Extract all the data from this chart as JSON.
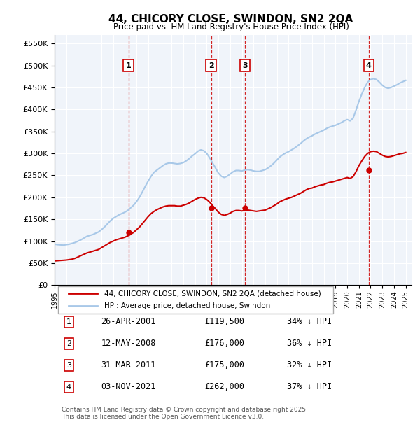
{
  "title": "44, CHICORY CLOSE, SWINDON, SN2 2QA",
  "subtitle": "Price paid vs. HM Land Registry's House Price Index (HPI)",
  "ylabel_ticks": [
    "£0",
    "£50K",
    "£100K",
    "£150K",
    "£200K",
    "£250K",
    "£300K",
    "£350K",
    "£400K",
    "£450K",
    "£500K",
    "£550K"
  ],
  "ytick_values": [
    0,
    50000,
    100000,
    150000,
    200000,
    250000,
    300000,
    350000,
    400000,
    450000,
    500000,
    550000
  ],
  "ylim": [
    0,
    570000
  ],
  "xlim_start": 1995.0,
  "xlim_end": 2025.5,
  "transactions": [
    {
      "id": 1,
      "date": "26-APR-2001",
      "price": 119500,
      "pct": "34%",
      "x": 2001.32
    },
    {
      "id": 2,
      "date": "12-MAY-2008",
      "price": 176000,
      "pct": "36%",
      "x": 2008.37
    },
    {
      "id": 3,
      "date": "31-MAR-2011",
      "price": 175000,
      "pct": "32%",
      "x": 2011.25
    },
    {
      "id": 4,
      "date": "03-NOV-2021",
      "price": 262000,
      "pct": "37%",
      "x": 2021.84
    }
  ],
  "hpi_line_color": "#a8c8e8",
  "price_line_color": "#cc0000",
  "vline_color": "#cc0000",
  "legend_label_red": "44, CHICORY CLOSE, SWINDON, SN2 2QA (detached house)",
  "legend_label_blue": "HPI: Average price, detached house, Swindon",
  "footer": "Contains HM Land Registry data © Crown copyright and database right 2025.\nThis data is licensed under the Open Government Licence v3.0.",
  "background_color": "#f0f4fa",
  "plot_bg_color": "#f0f4fa",
  "hpi_data_x": [
    1995.0,
    1995.25,
    1995.5,
    1995.75,
    1996.0,
    1996.25,
    1996.5,
    1996.75,
    1997.0,
    1997.25,
    1997.5,
    1997.75,
    1998.0,
    1998.25,
    1998.5,
    1998.75,
    1999.0,
    1999.25,
    1999.5,
    1999.75,
    2000.0,
    2000.25,
    2000.5,
    2000.75,
    2001.0,
    2001.25,
    2001.5,
    2001.75,
    2002.0,
    2002.25,
    2002.5,
    2002.75,
    2003.0,
    2003.25,
    2003.5,
    2003.75,
    2004.0,
    2004.25,
    2004.5,
    2004.75,
    2005.0,
    2005.25,
    2005.5,
    2005.75,
    2006.0,
    2006.25,
    2006.5,
    2006.75,
    2007.0,
    2007.25,
    2007.5,
    2007.75,
    2008.0,
    2008.25,
    2008.5,
    2008.75,
    2009.0,
    2009.25,
    2009.5,
    2009.75,
    2010.0,
    2010.25,
    2010.5,
    2010.75,
    2011.0,
    2011.25,
    2011.5,
    2011.75,
    2012.0,
    2012.25,
    2012.5,
    2012.75,
    2013.0,
    2013.25,
    2013.5,
    2013.75,
    2014.0,
    2014.25,
    2014.5,
    2014.75,
    2015.0,
    2015.25,
    2015.5,
    2015.75,
    2016.0,
    2016.25,
    2016.5,
    2016.75,
    2017.0,
    2017.25,
    2017.5,
    2017.75,
    2018.0,
    2018.25,
    2018.5,
    2018.75,
    2019.0,
    2019.25,
    2019.5,
    2019.75,
    2020.0,
    2020.25,
    2020.5,
    2020.75,
    2021.0,
    2021.25,
    2021.5,
    2021.75,
    2022.0,
    2022.25,
    2022.5,
    2022.75,
    2023.0,
    2023.25,
    2023.5,
    2023.75,
    2024.0,
    2024.25,
    2024.5,
    2024.75,
    2025.0
  ],
  "hpi_data_y": [
    93000,
    92000,
    91500,
    91000,
    92000,
    93000,
    95000,
    97000,
    100000,
    103000,
    107000,
    111000,
    113000,
    115000,
    118000,
    121000,
    126000,
    132000,
    139000,
    146000,
    152000,
    156000,
    160000,
    163000,
    166000,
    170000,
    176000,
    182000,
    190000,
    200000,
    212000,
    225000,
    237000,
    248000,
    257000,
    262000,
    267000,
    272000,
    276000,
    278000,
    278000,
    277000,
    276000,
    277000,
    279000,
    283000,
    288000,
    294000,
    299000,
    305000,
    308000,
    306000,
    300000,
    290000,
    278000,
    267000,
    255000,
    248000,
    245000,
    248000,
    253000,
    258000,
    261000,
    261000,
    260000,
    262000,
    263000,
    262000,
    260000,
    259000,
    259000,
    261000,
    263000,
    267000,
    272000,
    278000,
    285000,
    292000,
    297000,
    301000,
    304000,
    308000,
    312000,
    317000,
    322000,
    328000,
    333000,
    337000,
    340000,
    344000,
    347000,
    350000,
    353000,
    357000,
    360000,
    362000,
    364000,
    367000,
    370000,
    374000,
    377000,
    374000,
    380000,
    398000,
    418000,
    435000,
    450000,
    462000,
    468000,
    470000,
    468000,
    462000,
    455000,
    450000,
    448000,
    450000,
    453000,
    456000,
    460000,
    463000,
    466000
  ],
  "price_data_x": [
    1995.0,
    1995.25,
    1995.5,
    1995.75,
    1996.0,
    1996.25,
    1996.5,
    1996.75,
    1997.0,
    1997.25,
    1997.5,
    1997.75,
    1998.0,
    1998.25,
    1998.5,
    1998.75,
    1999.0,
    1999.25,
    1999.5,
    1999.75,
    2000.0,
    2000.25,
    2000.5,
    2000.75,
    2001.0,
    2001.25,
    2001.5,
    2001.75,
    2002.0,
    2002.25,
    2002.5,
    2002.75,
    2003.0,
    2003.25,
    2003.5,
    2003.75,
    2004.0,
    2004.25,
    2004.5,
    2004.75,
    2005.0,
    2005.25,
    2005.5,
    2005.75,
    2006.0,
    2006.25,
    2006.5,
    2006.75,
    2007.0,
    2007.25,
    2007.5,
    2007.75,
    2008.0,
    2008.25,
    2008.5,
    2008.75,
    2009.0,
    2009.25,
    2009.5,
    2009.75,
    2010.0,
    2010.25,
    2010.5,
    2010.75,
    2011.0,
    2011.25,
    2011.5,
    2011.75,
    2012.0,
    2012.25,
    2012.5,
    2012.75,
    2013.0,
    2013.25,
    2013.5,
    2013.75,
    2014.0,
    2014.25,
    2014.5,
    2014.75,
    2015.0,
    2015.25,
    2015.5,
    2015.75,
    2016.0,
    2016.25,
    2016.5,
    2016.75,
    2017.0,
    2017.25,
    2017.5,
    2017.75,
    2018.0,
    2018.25,
    2018.5,
    2018.75,
    2019.0,
    2019.25,
    2019.5,
    2019.75,
    2020.0,
    2020.25,
    2020.5,
    2020.75,
    2021.0,
    2021.25,
    2021.5,
    2021.75,
    2022.0,
    2022.25,
    2022.5,
    2022.75,
    2023.0,
    2023.25,
    2023.5,
    2023.75,
    2024.0,
    2024.25,
    2024.5,
    2024.75,
    2025.0
  ],
  "price_data_y": [
    55000,
    55500,
    56000,
    56500,
    57000,
    58000,
    59000,
    61000,
    64000,
    67000,
    70000,
    73000,
    75000,
    77000,
    79000,
    81000,
    85000,
    89000,
    93000,
    97000,
    100000,
    103000,
    105000,
    107000,
    109000,
    112000,
    116000,
    120000,
    126000,
    132000,
    140000,
    148000,
    156000,
    163000,
    168000,
    172000,
    175000,
    178000,
    180000,
    181000,
    181000,
    181000,
    180000,
    180000,
    182000,
    184000,
    187000,
    191000,
    195000,
    198000,
    200000,
    199000,
    195000,
    189000,
    181000,
    174000,
    166000,
    161000,
    159000,
    161000,
    164000,
    168000,
    170000,
    170000,
    169000,
    170000,
    171000,
    170000,
    169000,
    168000,
    169000,
    170000,
    171000,
    174000,
    177000,
    181000,
    185000,
    190000,
    193000,
    196000,
    198000,
    200000,
    203000,
    206000,
    209000,
    213000,
    217000,
    220000,
    221000,
    224000,
    226000,
    228000,
    229000,
    232000,
    234000,
    235000,
    237000,
    239000,
    241000,
    243000,
    245000,
    243000,
    247000,
    258000,
    272000,
    283000,
    293000,
    300000,
    304000,
    305000,
    304000,
    300000,
    296000,
    293000,
    292000,
    293000,
    295000,
    297000,
    299000,
    300000,
    302000
  ]
}
